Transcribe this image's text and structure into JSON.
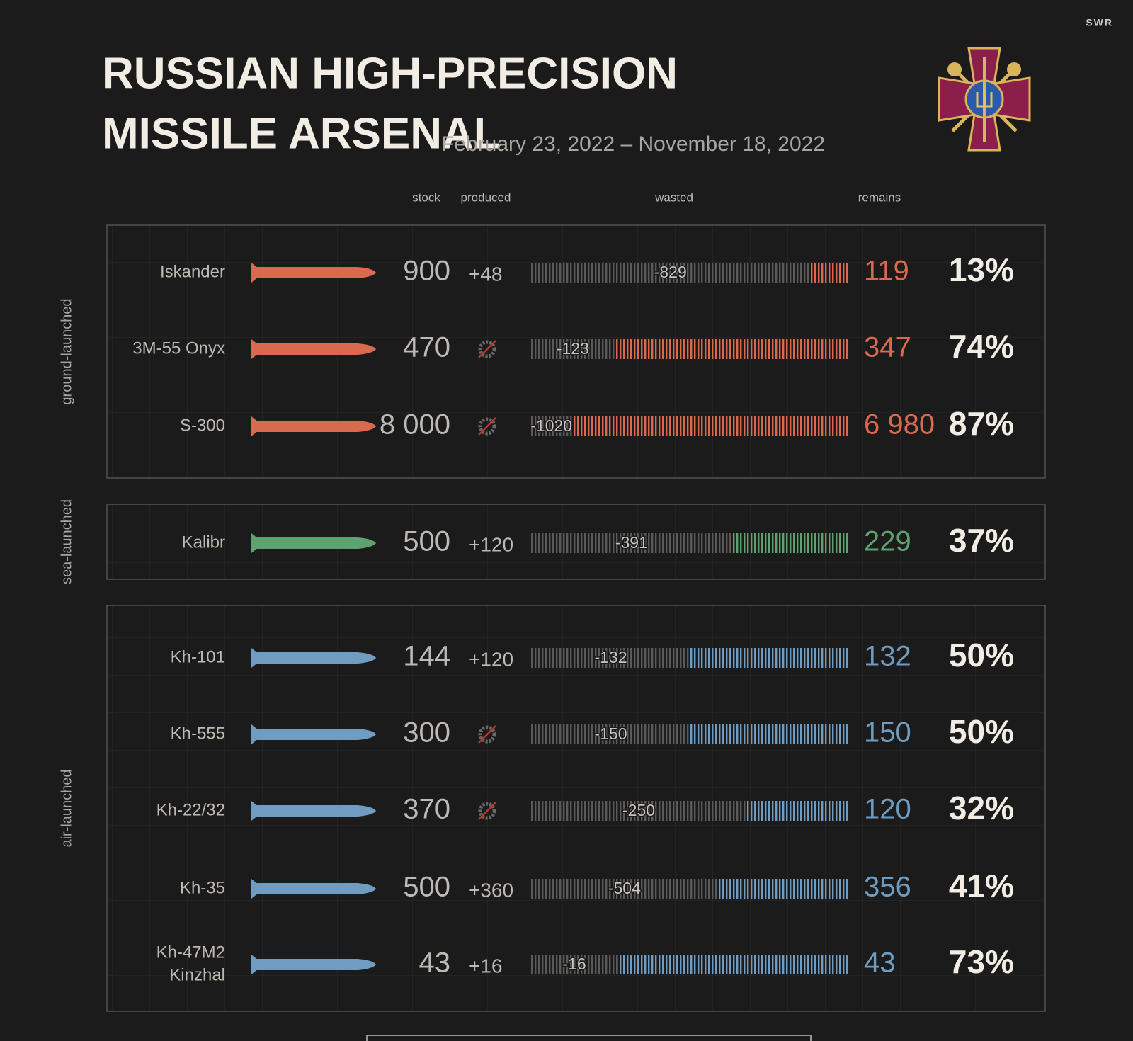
{
  "header": {
    "title_line1": "RUSSIAN HIGH-PRECISION",
    "title_line2": "MISSILE ARSENAL",
    "date_range": "February 23, 2022 – November 18, 2022",
    "logo": "SWR"
  },
  "columns": {
    "stock": "stock",
    "produced": "produced",
    "wasted": "wasted",
    "remains": "remains"
  },
  "groups": [
    {
      "label": "ground-launched",
      "color": "#d9694f",
      "rows": [
        {
          "name": "Iskander",
          "stock": 900,
          "produced": "+48",
          "wasted": -829,
          "remains": 119,
          "remains_pct": "13%"
        },
        {
          "name": "3M-55 Onyx",
          "stock": 470,
          "produced": null,
          "wasted": -123,
          "remains": 347,
          "remains_pct": "74%"
        },
        {
          "name": "S-300",
          "stock": 8000,
          "stock_label": "8 000",
          "produced": null,
          "wasted": -1020,
          "remains": 6980,
          "remains_label": "6 980",
          "remains_pct": "87%"
        }
      ]
    },
    {
      "label": "sea-launched",
      "color": "#5ea36f",
      "rows": [
        {
          "name": "Kalibr",
          "stock": 500,
          "produced": "+120",
          "wasted": -391,
          "remains": 229,
          "remains_pct": "37%"
        }
      ]
    },
    {
      "label": "air-launched",
      "color": "#6f9cc0",
      "rows": [
        {
          "name": "Kh-101",
          "stock": 144,
          "produced": "+120",
          "wasted": -132,
          "remains": 132,
          "remains_pct": "50%"
        },
        {
          "name": "Kh-555",
          "stock": 300,
          "produced": null,
          "wasted": -150,
          "remains": 150,
          "remains_pct": "50%"
        },
        {
          "name": "Kh-22/32",
          "stock": 370,
          "produced": null,
          "wasted": -250,
          "remains": 120,
          "remains_pct": "32%"
        },
        {
          "name": "Kh-35",
          "stock": 500,
          "produced": "+360",
          "wasted": -504,
          "remains": 356,
          "remains_pct": "41%"
        },
        {
          "name": [
            "Kh-47M2",
            "Kinzhal"
          ],
          "stock": 43,
          "produced": "+16",
          "wasted": -16,
          "remains": 43,
          "remains_pct": "73%"
        }
      ]
    }
  ]
}
